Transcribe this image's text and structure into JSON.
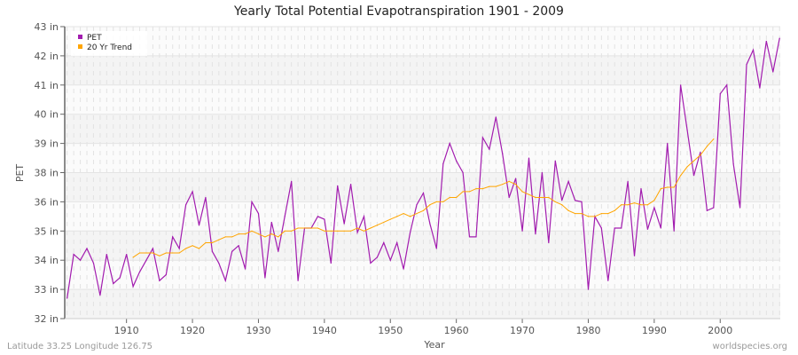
{
  "chart_data": {
    "type": "line",
    "title": "Yearly Total Potential Evapotranspiration 1901 - 2009",
    "xlabel": "Year",
    "ylabel": "PET",
    "y_tick_labels": [
      "32 in",
      "33 in",
      "34 in",
      "35 in",
      "36 in",
      "38 in",
      "39 in",
      "40 in",
      "41 in",
      "42 in",
      "43 in"
    ],
    "y_tick_values": [
      32,
      33,
      34,
      35,
      36,
      38,
      39,
      40,
      41,
      42,
      43
    ],
    "x_ticks": [
      1910,
      1920,
      1930,
      1940,
      1950,
      1960,
      1970,
      1980,
      1990,
      2000
    ],
    "xlim": [
      1901,
      2009
    ],
    "ylim": [
      32,
      43
    ],
    "grid": true,
    "legend_position": "top-left",
    "series": [
      {
        "name": "PET",
        "color": "#a21caf",
        "x_start": 1901,
        "values": [
          32.7,
          34.2,
          34.0,
          34.4,
          33.9,
          32.8,
          34.2,
          33.2,
          33.4,
          34.2,
          33.1,
          33.6,
          34.0,
          34.4,
          33.3,
          33.5,
          34.8,
          34.4,
          35.9,
          36.7,
          35.2,
          36.3,
          34.3,
          33.9,
          33.3,
          34.3,
          34.5,
          33.7,
          36.0,
          35.6,
          33.4,
          35.3,
          34.3,
          35.5,
          37.4,
          33.3,
          35.1,
          35.1,
          35.5,
          35.4,
          33.9,
          37.1,
          35.25,
          37.2,
          34.95,
          35.5,
          33.9,
          34.1,
          34.6,
          34.0,
          34.6,
          33.7,
          34.95,
          35.9,
          36.6,
          35.25,
          34.4,
          38.3,
          39.0,
          38.4,
          38.0,
          34.8,
          34.8,
          39.2,
          38.8,
          39.9,
          38.65,
          36.3,
          37.6,
          35.0,
          38.5,
          34.9,
          38.0,
          34.6,
          38.4,
          36.1,
          37.4,
          36.1,
          36.0,
          33.0,
          35.5,
          35.1,
          33.3,
          35.1,
          35.1,
          37.4,
          34.15,
          36.9,
          35.06,
          35.8,
          35.1,
          39.0,
          35.0,
          41.0,
          39.45,
          37.8,
          38.7,
          35.7,
          35.8,
          40.7,
          41.0,
          38.3,
          35.8,
          41.7,
          42.2,
          40.9,
          42.5,
          41.45,
          42.6
        ]
      },
      {
        "name": "20 Yr Trend",
        "color": "#ffa500",
        "x_start": 1911,
        "values": [
          34.1,
          34.25,
          34.25,
          34.25,
          34.15,
          34.25,
          34.25,
          34.25,
          34.4,
          34.5,
          34.4,
          34.6,
          34.6,
          34.7,
          34.8,
          34.8,
          34.9,
          34.9,
          35.0,
          34.9,
          34.8,
          34.9,
          34.8,
          35.0,
          35.0,
          35.1,
          35.1,
          35.1,
          35.1,
          35.0,
          35.0,
          35.0,
          35.0,
          35.0,
          35.1,
          35.0,
          35.1,
          35.2,
          35.3,
          35.4,
          35.5,
          35.6,
          35.5,
          35.6,
          35.7,
          35.9,
          36.0,
          36.0,
          36.3,
          36.3,
          36.7,
          36.7,
          36.9,
          36.9,
          37.05,
          37.05,
          37.2,
          37.4,
          37.2,
          36.7,
          36.5,
          36.3,
          36.3,
          36.3,
          36.0,
          35.9,
          35.7,
          35.6,
          35.6,
          35.5,
          35.5,
          35.6,
          35.6,
          35.7,
          35.9,
          35.9,
          35.96,
          35.9,
          35.9,
          36.1,
          36.9,
          37.0,
          37.0,
          37.8,
          38.2,
          38.4,
          38.6,
          38.9,
          39.15
        ]
      }
    ]
  },
  "footer": {
    "location": "Latitude 33.25 Longitude 126.75",
    "source": "worldspecies.org"
  }
}
